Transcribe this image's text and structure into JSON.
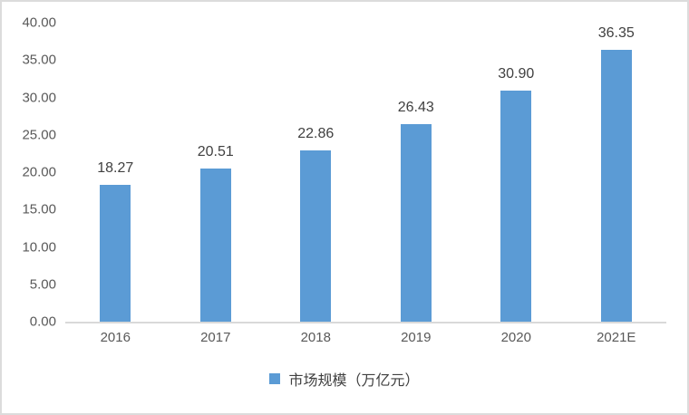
{
  "chart_data": {
    "type": "bar",
    "title": "",
    "xlabel": "",
    "ylabel": "",
    "categories": [
      "2016",
      "2017",
      "2018",
      "2019",
      "2020",
      "2021E"
    ],
    "series": [
      {
        "name": "市场规模（万亿元）",
        "values": [
          18.27,
          20.51,
          22.86,
          26.43,
          30.9,
          36.35
        ],
        "value_labels": [
          "18.27",
          "20.51",
          "22.86",
          "26.43",
          "30.90",
          "36.35"
        ]
      }
    ],
    "ylim": [
      0,
      40
    ],
    "y_tick_values": [
      40,
      35,
      30,
      25,
      20,
      15,
      10,
      5,
      0
    ],
    "y_tick_labels": [
      "40.00",
      "35.00",
      "30.00",
      "25.00",
      "20.00",
      "15.00",
      "10.00",
      "5.00",
      "0.00"
    ],
    "grid": false,
    "data_labels": "outside-end",
    "legend_position": "bottom",
    "legend": "市场规模（万亿元）"
  },
  "colors": {
    "bar": "#5B9BD5",
    "axis_line": "#D9D9D9",
    "frame_border": "#DCDCDC",
    "tick_text": "#595959",
    "data_label_text": "#404040",
    "background": "#FFFFFF"
  }
}
